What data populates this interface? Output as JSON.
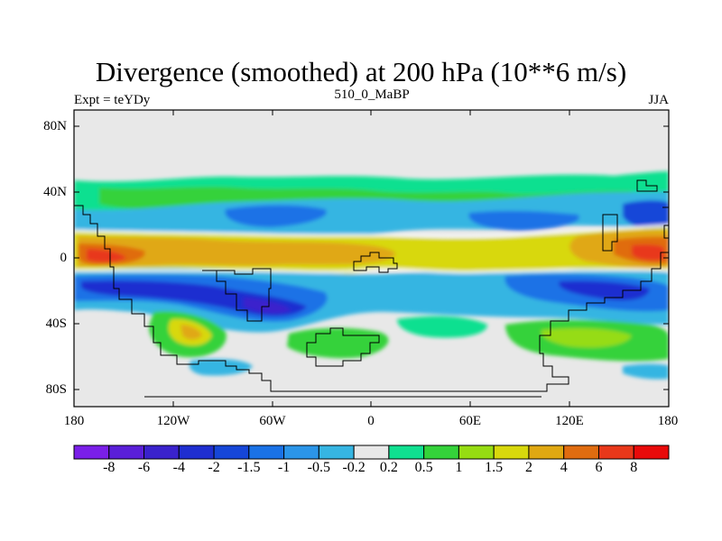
{
  "plot": {
    "title": "Divergence (smoothed) at 200 hPa (10**6 m/s)",
    "left_string": "Expt = teYDy",
    "center_string": "510_0_MaBP",
    "right_string": "JJA"
  },
  "axes": {
    "y_ticks": [
      "80N",
      "40N",
      "0",
      "40S",
      "80S"
    ],
    "x_ticks": [
      "180",
      "120W",
      "60W",
      "0",
      "60E",
      "120E",
      "180"
    ],
    "lat_range": [
      -90,
      90
    ],
    "lon_range": [
      -180,
      180
    ]
  },
  "colorbar": {
    "colors": [
      "#7a1fe8",
      "#5a1fd8",
      "#3a22cc",
      "#1f2ed0",
      "#1646d8",
      "#1a72e6",
      "#2b95e8",
      "#36b5e2",
      "#e8e8e8",
      "#10e090",
      "#34d23a",
      "#96dc12",
      "#d8d80c",
      "#e0a812",
      "#e06c10",
      "#e8381a",
      "#e80a0a"
    ],
    "labels": [
      "-8",
      "-6",
      "-4",
      "-2",
      "-1.5",
      "-1",
      "-0.5",
      "-0.2",
      "0.2",
      "0.5",
      "1",
      "1.5",
      "2",
      "4",
      "6",
      "8"
    ]
  },
  "map_colors": {
    "ocean_background": "#e8e8e8",
    "coastline": "#000000"
  }
}
